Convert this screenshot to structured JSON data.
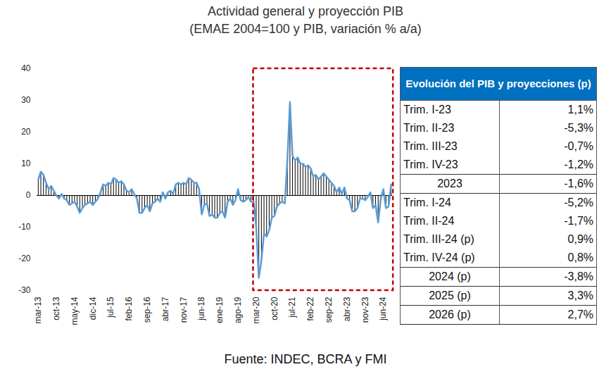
{
  "chart_data": {
    "type": "combo",
    "title": "Actividad general y proyección PIB",
    "subtitle": "(EMAE 2004=100 y PIB, variación % a/a)",
    "caption": "Fuente: INDEC, BCRA y FMI",
    "color": "#5b9bd5",
    "highlight_from": "mar-20",
    "categories": [
      "mar-13",
      null,
      null,
      null,
      null,
      null,
      null,
      "oct-13",
      null,
      null,
      null,
      null,
      null,
      null,
      "may-14",
      null,
      null,
      null,
      null,
      null,
      null,
      "dic-14",
      null,
      null,
      null,
      null,
      null,
      null,
      "jul-15",
      null,
      null,
      null,
      null,
      null,
      null,
      "feb-16",
      null,
      null,
      null,
      null,
      null,
      null,
      "sep-16",
      null,
      null,
      null,
      null,
      null,
      null,
      "abr-17",
      null,
      null,
      null,
      null,
      null,
      null,
      "nov-17",
      null,
      null,
      null,
      null,
      null,
      null,
      "jun-18",
      null,
      null,
      null,
      null,
      null,
      null,
      "ene-19",
      null,
      null,
      null,
      null,
      null,
      null,
      "ago-19",
      null,
      null,
      null,
      null,
      null,
      null,
      "mar-20",
      null,
      null,
      null,
      null,
      null,
      null,
      "oct-20",
      null,
      null,
      null,
      null,
      null,
      null,
      "jul-21",
      null,
      null,
      null,
      null,
      null,
      null,
      "feb-22",
      null,
      null,
      null,
      null,
      null,
      null,
      "sep-22",
      null,
      null,
      null,
      null,
      null,
      null,
      "abr-23",
      null,
      null,
      null,
      null,
      null,
      null,
      "nov-23",
      null,
      null,
      null,
      null,
      null,
      null,
      "jun-24",
      null,
      null,
      null
    ],
    "values": [
      5,
      7.5,
      6.5,
      4,
      2,
      3,
      1.5,
      0,
      -1,
      0.5,
      -1,
      -1.5,
      -3,
      -2.5,
      -2,
      -3.5,
      -5.5,
      -4,
      -3,
      -2.5,
      -2,
      -3,
      -2,
      -1,
      1,
      3.5,
      3,
      4,
      3.5,
      5.5,
      5,
      4,
      4.5,
      3.5,
      1.5,
      1,
      2,
      0.5,
      -1,
      -5.5,
      -5.5,
      -4,
      -3,
      -5,
      -2.5,
      -2,
      -1,
      -2,
      1,
      -1,
      1,
      1.5,
      0.5,
      3.5,
      4,
      3.5,
      4,
      3.5,
      5.5,
      5,
      4,
      4,
      2,
      -6,
      -3,
      -2.5,
      -6.5,
      -6,
      -7,
      -7,
      -5.5,
      -5,
      -7,
      -2,
      -1,
      -3,
      -1.5,
      2,
      -1.5,
      -2,
      -1.5,
      -0.5,
      -2,
      -2,
      -10,
      -26,
      -20.5,
      -12,
      -13,
      -11,
      -7,
      -6.5,
      -3.5,
      -2.5,
      -2,
      -2.5,
      11,
      29.5,
      12.5,
      11,
      12,
      10,
      10,
      9,
      9.5,
      8.5,
      6,
      6.5,
      5,
      6,
      7,
      6,
      5,
      4,
      3,
      1,
      2.5,
      0.5,
      2.5,
      -1,
      -1.5,
      -5,
      -5,
      -4,
      -1,
      -1,
      -1.5,
      -0.5,
      1,
      -4,
      -3,
      -8.5,
      -1,
      2,
      -4,
      -3.5,
      3.5
    ],
    "ylim": [
      -30,
      40
    ],
    "yticks": [
      40,
      30,
      20,
      10,
      0,
      -10,
      -20,
      -30
    ],
    "grid": false
  },
  "table": {
    "header": "Evolución del PIB y proyecciones (p)",
    "rows": [
      [
        "Trim. I-23",
        "1,1%"
      ],
      [
        "Trim. II-23",
        "-5,3%"
      ],
      [
        "Trim. III-23",
        "-0,7%"
      ],
      [
        "Trim. IV-23",
        "-1,2%"
      ],
      [
        "2023",
        "-1,6%"
      ],
      [
        "Trim. I-24",
        "-5,2%"
      ],
      [
        "Trim. II-24",
        "-1,7%"
      ],
      [
        "Trim. III-24 (p)",
        "0,9%"
      ],
      [
        "Trim. IV-24 (p)",
        "0,8%"
      ],
      [
        "2024 (p)",
        "-3,8%"
      ],
      [
        "2025 (p)",
        "3,3%"
      ],
      [
        "2026 (p)",
        "2,7%"
      ]
    ]
  }
}
